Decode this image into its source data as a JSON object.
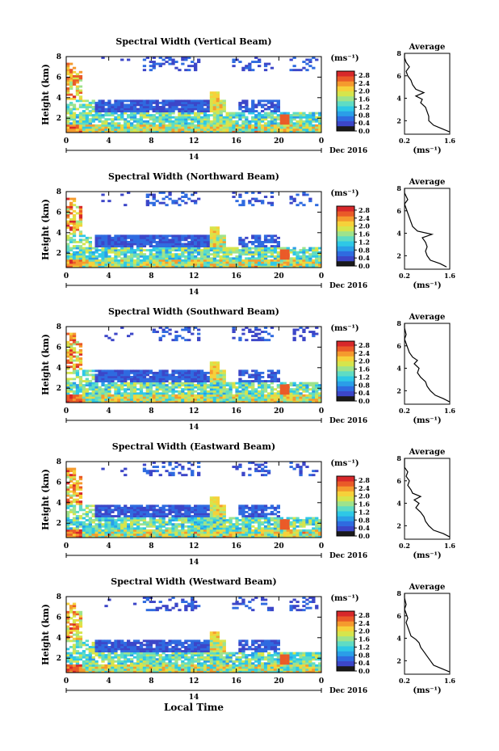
{
  "chart_data": {
    "type": "heatmap",
    "xlabel": "Local Time",
    "date_label": "Dec 2016",
    "day_label": "14",
    "x_ticks": [
      "0",
      "4",
      "8",
      "12",
      "16",
      "20",
      "0"
    ],
    "xlim": [
      0,
      24
    ],
    "ylabel": "Height (km)",
    "y_ticks": [
      "2",
      "4",
      "6",
      "8"
    ],
    "ylim": [
      0.6,
      8.0
    ],
    "colorbar_unit": "(ms⁻¹)",
    "colorbar_ticks": [
      "0.0",
      "0.4",
      "0.8",
      "1.2",
      "1.6",
      "2.0",
      "2.4",
      "2.8"
    ],
    "colorbar_range": [
      0.0,
      3.0
    ],
    "colors": [
      "#1a1a1a",
      "#3c46c8",
      "#2f6be0",
      "#2a9ee8",
      "#2ec8e6",
      "#5fdcc4",
      "#9ee38c",
      "#d6e54c",
      "#f6d13a",
      "#f59a2e",
      "#ea5a28",
      "#d8282a"
    ],
    "panels": [
      {
        "title": "Spectral Width (Vertical Beam)",
        "avg_title": "Average",
        "avg_xlabel": "(ms⁻¹)",
        "avg_x_ticks": [
          "0.2",
          "1.6"
        ],
        "avg_xlim": [
          0.2,
          1.6
        ],
        "avg_y_ticks": [
          "2",
          "4",
          "6",
          "8"
        ],
        "avg_profile": [
          [
            1.6,
            1.0
          ],
          [
            1.35,
            1.3
          ],
          [
            1.1,
            1.6
          ],
          [
            0.95,
            2.0
          ],
          [
            0.95,
            2.4
          ],
          [
            0.9,
            2.8
          ],
          [
            0.85,
            3.2
          ],
          [
            0.7,
            3.6
          ],
          [
            0.75,
            3.9
          ],
          [
            0.55,
            4.2
          ],
          [
            0.8,
            4.5
          ],
          [
            0.55,
            4.8
          ],
          [
            0.45,
            5.2
          ],
          [
            0.4,
            5.6
          ],
          [
            0.3,
            6.0
          ],
          [
            0.25,
            6.4
          ],
          [
            0.35,
            6.8
          ],
          [
            0.25,
            7.2
          ],
          [
            0.2,
            7.6
          ],
          [
            0.2,
            8.0
          ]
        ]
      },
      {
        "title": "Spectral Width (Northward Beam)",
        "avg_title": "Average",
        "avg_xlabel": "(ms⁻¹)",
        "avg_x_ticks": [
          "0.2",
          "1.6"
        ],
        "avg_xlim": [
          0.2,
          1.6
        ],
        "avg_y_ticks": [
          "2",
          "4",
          "6",
          "8"
        ],
        "avg_profile": [
          [
            1.5,
            1.0
          ],
          [
            1.3,
            1.3
          ],
          [
            1.0,
            1.6
          ],
          [
            0.9,
            2.0
          ],
          [
            0.85,
            2.4
          ],
          [
            0.9,
            2.8
          ],
          [
            0.85,
            3.2
          ],
          [
            0.75,
            3.6
          ],
          [
            1.05,
            3.9
          ],
          [
            0.6,
            4.2
          ],
          [
            0.45,
            4.6
          ],
          [
            0.4,
            5.0
          ],
          [
            0.35,
            5.4
          ],
          [
            0.3,
            5.8
          ],
          [
            0.25,
            6.2
          ],
          [
            0.2,
            6.6
          ],
          [
            0.3,
            7.0
          ],
          [
            0.2,
            7.6
          ],
          [
            0.2,
            8.0
          ]
        ]
      },
      {
        "title": "Spectral Width (Southward Beam)",
        "avg_title": "Average",
        "avg_xlabel": "(ms⁻¹)",
        "avg_x_ticks": [
          "0.2",
          "1.6"
        ],
        "avg_xlim": [
          0.2,
          1.6
        ],
        "avg_y_ticks": [
          "2",
          "4",
          "6",
          "8"
        ],
        "avg_profile": [
          [
            1.6,
            1.0
          ],
          [
            1.4,
            1.3
          ],
          [
            1.15,
            1.6
          ],
          [
            1.0,
            2.0
          ],
          [
            0.9,
            2.4
          ],
          [
            0.85,
            2.8
          ],
          [
            0.7,
            3.2
          ],
          [
            0.6,
            3.6
          ],
          [
            0.65,
            4.0
          ],
          [
            0.5,
            4.4
          ],
          [
            0.6,
            4.7
          ],
          [
            0.45,
            5.0
          ],
          [
            0.35,
            5.4
          ],
          [
            0.3,
            5.8
          ],
          [
            0.25,
            6.2
          ],
          [
            0.2,
            6.6
          ],
          [
            0.25,
            7.0
          ],
          [
            0.2,
            7.6
          ],
          [
            0.2,
            8.0
          ]
        ]
      },
      {
        "title": "Spectral Width (Eastward Beam)",
        "avg_title": "Average",
        "avg_xlabel": "(ms⁻¹)",
        "avg_x_ticks": [
          "0.2",
          "1.6"
        ],
        "avg_xlim": [
          0.2,
          1.6
        ],
        "avg_y_ticks": [
          "2",
          "4",
          "6",
          "8"
        ],
        "avg_profile": [
          [
            1.6,
            1.0
          ],
          [
            1.4,
            1.3
          ],
          [
            1.1,
            1.6
          ],
          [
            0.95,
            2.0
          ],
          [
            0.85,
            2.4
          ],
          [
            0.8,
            2.8
          ],
          [
            0.7,
            3.2
          ],
          [
            0.55,
            3.6
          ],
          [
            0.65,
            4.0
          ],
          [
            0.5,
            4.3
          ],
          [
            0.7,
            4.6
          ],
          [
            0.45,
            4.9
          ],
          [
            0.4,
            5.2
          ],
          [
            0.3,
            5.6
          ],
          [
            0.35,
            6.0
          ],
          [
            0.25,
            6.4
          ],
          [
            0.3,
            6.8
          ],
          [
            0.2,
            7.2
          ],
          [
            0.2,
            8.0
          ]
        ]
      },
      {
        "title": "Spectral Width (Westward Beam)",
        "avg_title": "Average",
        "avg_xlabel": "(ms⁻¹)",
        "avg_x_ticks": [
          "0.2",
          "1.6"
        ],
        "avg_xlim": [
          0.2,
          1.6
        ],
        "avg_y_ticks": [
          "2",
          "4",
          "6",
          "8"
        ],
        "avg_profile": [
          [
            1.6,
            1.0
          ],
          [
            1.35,
            1.3
          ],
          [
            1.1,
            1.6
          ],
          [
            1.0,
            2.0
          ],
          [
            0.9,
            2.4
          ],
          [
            0.8,
            2.8
          ],
          [
            0.7,
            3.2
          ],
          [
            0.65,
            3.6
          ],
          [
            0.55,
            3.9
          ],
          [
            0.4,
            4.2
          ],
          [
            0.35,
            4.6
          ],
          [
            0.3,
            5.0
          ],
          [
            0.25,
            5.4
          ],
          [
            0.3,
            5.8
          ],
          [
            0.25,
            6.2
          ],
          [
            0.2,
            6.6
          ],
          [
            0.25,
            7.0
          ],
          [
            0.2,
            7.6
          ],
          [
            0.2,
            8.0
          ]
        ]
      }
    ]
  }
}
